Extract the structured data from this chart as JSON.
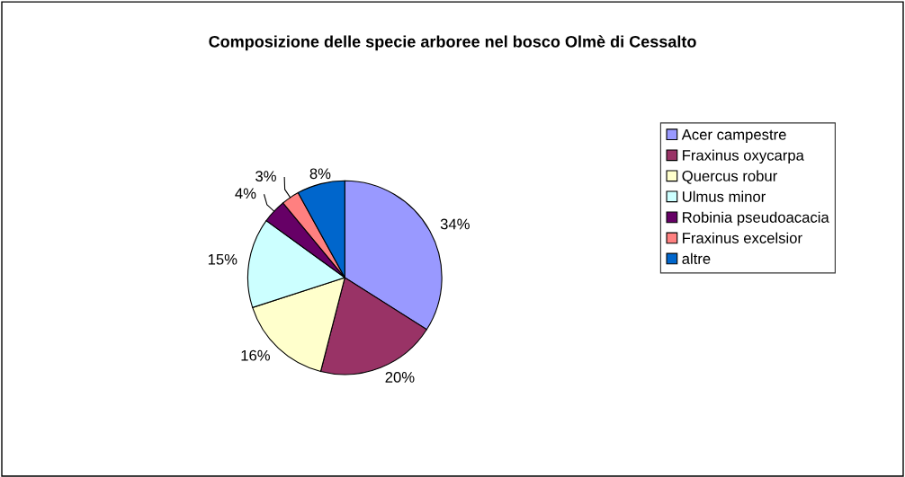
{
  "chart_data": {
    "type": "pie",
    "title": "Composizione delle specie arboree nel bosco Olmè di Cessalto",
    "categories": [
      "Acer campestre",
      "Fraxinus oxycarpa",
      "Quercus robur",
      "Ulmus minor",
      "Robinia pseudoacacia",
      "Fraxinus excelsior",
      "altre"
    ],
    "values": [
      34,
      20,
      16,
      15,
      4,
      3,
      8
    ],
    "value_labels": [
      "34%",
      "20%",
      "16%",
      "15%",
      "4%",
      "3%",
      "8%"
    ],
    "colors": [
      "#9999ff",
      "#993366",
      "#ffffcc",
      "#ccffff",
      "#660066",
      "#ff8080",
      "#0066cc"
    ],
    "legend": "right"
  }
}
